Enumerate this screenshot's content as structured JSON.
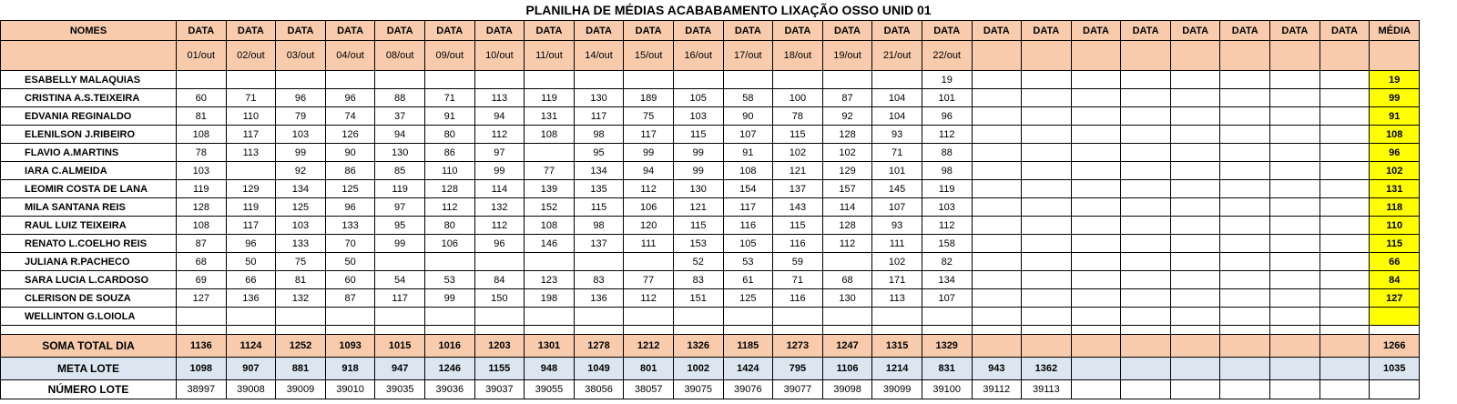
{
  "title": "PLANILHA DE MÉDIAS ACABABAMENTO LIXAÇÃO OSSO UNID 01",
  "header": {
    "names_label": "NOMES",
    "date_label": "DATA",
    "avg_label": "MÉDIA",
    "dates": [
      "01/out",
      "02/out",
      "03/out",
      "04/out",
      "08/out",
      "09/out",
      "10/out",
      "11/out",
      "14/out",
      "15/out",
      "16/out",
      "17/out",
      "18/out",
      "19/out",
      "21/out",
      "22/out",
      "",
      "",
      "",
      "",
      "",
      "",
      "",
      ""
    ]
  },
  "rows": [
    {
      "name": "ESABELLY MALAQUIAS",
      "values": [
        "",
        "",
        "",
        "",
        "",
        "",
        "",
        "",
        "",
        "",
        "",
        "",
        "",
        "",
        "",
        "19",
        "",
        "",
        "",
        "",
        "",
        "",
        "",
        ""
      ],
      "avg": "19"
    },
    {
      "name": "CRISTINA A.S.TEIXEIRA",
      "values": [
        "60",
        "71",
        "96",
        "96",
        "88",
        "71",
        "113",
        "119",
        "130",
        "189",
        "105",
        "58",
        "100",
        "87",
        "104",
        "101",
        "",
        "",
        "",
        "",
        "",
        "",
        "",
        ""
      ],
      "avg": "99"
    },
    {
      "name": "EDVANIA REGINALDO",
      "values": [
        "81",
        "110",
        "79",
        "74",
        "37",
        "91",
        "94",
        "131",
        "117",
        "75",
        "103",
        "90",
        "78",
        "92",
        "104",
        "96",
        "",
        "",
        "",
        "",
        "",
        "",
        "",
        ""
      ],
      "avg": "91"
    },
    {
      "name": "ELENILSON J.RIBEIRO",
      "values": [
        "108",
        "117",
        "103",
        "126",
        "94",
        "80",
        "112",
        "108",
        "98",
        "117",
        "115",
        "107",
        "115",
        "128",
        "93",
        "112",
        "",
        "",
        "",
        "",
        "",
        "",
        "",
        ""
      ],
      "avg": "108"
    },
    {
      "name": "FLAVIO A.MARTINS",
      "values": [
        "78",
        "113",
        "99",
        "90",
        "130",
        "86",
        "97",
        "",
        "95",
        "99",
        "99",
        "91",
        "102",
        "102",
        "71",
        "88",
        "",
        "",
        "",
        "",
        "",
        "",
        "",
        ""
      ],
      "avg": "96"
    },
    {
      "name": "IARA C.ALMEIDA",
      "values": [
        "103",
        "",
        "92",
        "86",
        "85",
        "110",
        "99",
        "77",
        "134",
        "94",
        "99",
        "108",
        "121",
        "129",
        "101",
        "98",
        "",
        "",
        "",
        "",
        "",
        "",
        "",
        ""
      ],
      "avg": "102"
    },
    {
      "name": "LEOMIR COSTA DE LANA",
      "values": [
        "119",
        "129",
        "134",
        "125",
        "119",
        "128",
        "114",
        "139",
        "135",
        "112",
        "130",
        "154",
        "137",
        "157",
        "145",
        "119",
        "",
        "",
        "",
        "",
        "",
        "",
        "",
        ""
      ],
      "avg": "131"
    },
    {
      "name": "MILA SANTANA REIS",
      "values": [
        "128",
        "119",
        "125",
        "96",
        "97",
        "112",
        "132",
        "152",
        "115",
        "106",
        "121",
        "117",
        "143",
        "114",
        "107",
        "103",
        "",
        "",
        "",
        "",
        "",
        "",
        "",
        ""
      ],
      "avg": "118"
    },
    {
      "name": "RAUL LUIZ TEIXEIRA",
      "values": [
        "108",
        "117",
        "103",
        "133",
        "95",
        "80",
        "112",
        "108",
        "98",
        "120",
        "115",
        "116",
        "115",
        "128",
        "93",
        "112",
        "",
        "",
        "",
        "",
        "",
        "",
        "",
        ""
      ],
      "avg": "110"
    },
    {
      "name": "RENATO L.COELHO REIS",
      "values": [
        "87",
        "96",
        "133",
        "70",
        "99",
        "106",
        "96",
        "146",
        "137",
        "111",
        "153",
        "105",
        "116",
        "112",
        "111",
        "158",
        "",
        "",
        "",
        "",
        "",
        "",
        "",
        ""
      ],
      "avg": "115"
    },
    {
      "name": "JULIANA R.PACHECO",
      "values": [
        "68",
        "50",
        "75",
        "50",
        "",
        "",
        "",
        "",
        "",
        "",
        "52",
        "53",
        "59",
        "",
        "102",
        "82",
        "",
        "",
        "",
        "",
        "",
        "",
        "",
        ""
      ],
      "avg": "66"
    },
    {
      "name": "SARA LUCIA L.CARDOSO",
      "values": [
        "69",
        "66",
        "81",
        "60",
        "54",
        "53",
        "84",
        "123",
        "83",
        "77",
        "83",
        "61",
        "71",
        "68",
        "171",
        "134",
        "",
        "",
        "",
        "",
        "",
        "",
        "",
        ""
      ],
      "avg": "84"
    },
    {
      "name": "CLERISON DE SOUZA",
      "values": [
        "127",
        "136",
        "132",
        "87",
        "117",
        "99",
        "150",
        "198",
        "136",
        "112",
        "151",
        "125",
        "116",
        "130",
        "113",
        "107",
        "",
        "",
        "",
        "",
        "",
        "",
        "",
        ""
      ],
      "avg": "127"
    },
    {
      "name": "WELLINTON G.LOIOLA",
      "values": [
        "",
        "",
        "",
        "",
        "",
        "",
        "",
        "",
        "",
        "",
        "",
        "",
        "",
        "",
        "",
        "",
        "",
        "",
        "",
        "",
        "",
        "",
        "",
        ""
      ],
      "avg": ""
    }
  ],
  "soma": {
    "label": "SOMA TOTAL DIA",
    "values": [
      "1136",
      "1124",
      "1252",
      "1093",
      "1015",
      "1016",
      "1203",
      "1301",
      "1278",
      "1212",
      "1326",
      "1185",
      "1273",
      "1247",
      "1315",
      "1329",
      "",
      "",
      "",
      "",
      "",
      "",
      "",
      ""
    ],
    "avg": "1266"
  },
  "meta": {
    "label": "META LOTE",
    "values": [
      "1098",
      "907",
      "881",
      "918",
      "947",
      "1246",
      "1155",
      "948",
      "1049",
      "801",
      "1002",
      "1424",
      "795",
      "1106",
      "1214",
      "831",
      "943",
      "1362",
      "",
      "",
      "",
      "",
      "",
      ""
    ],
    "avg": "1035"
  },
  "lote": {
    "label": "NÚMERO LOTE",
    "values": [
      "38997",
      "39008",
      "39009",
      "39010",
      "39035",
      "39036",
      "39037",
      "39055",
      "38056",
      "38057",
      "39075",
      "39076",
      "39077",
      "39098",
      "39099",
      "39100",
      "39112",
      "39113",
      "",
      "",
      "",
      "",
      "",
      ""
    ],
    "avg": ""
  }
}
